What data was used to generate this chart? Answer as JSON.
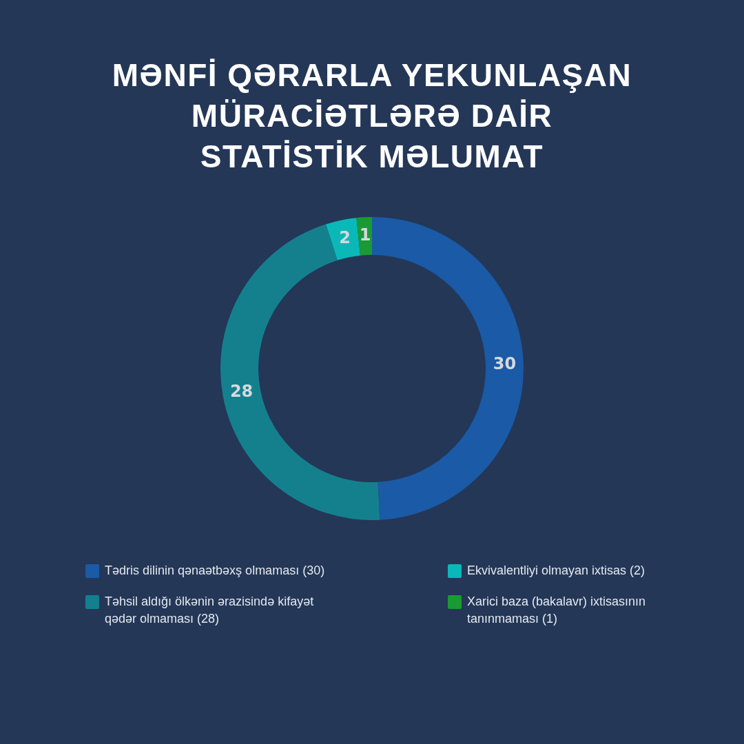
{
  "chart_data": {
    "type": "donut",
    "title": "MƏNFİ QƏRARLA YEKUNLAŞAN MÜRACİƏTLƏRƏ DAİR STATİSTİK MƏLUMAT",
    "categories": [
      "Tədris dilinin qənaətbəxş olmaması (30)",
      "Təhsil aldığı ölkənin ərazisində kifayət qədər olmaması (28)",
      "Ekvivalentliyi olmayan ixtisas (2)",
      "Xarici baza (bakalavr) ixtisasının tanınmaması (1)"
    ],
    "values": [
      30,
      28,
      2,
      1
    ],
    "colors": [
      "#1a5aa6",
      "#14808e",
      "#0ab8b8",
      "#1a9a34"
    ],
    "data_labels": true,
    "legend": "bottom"
  }
}
